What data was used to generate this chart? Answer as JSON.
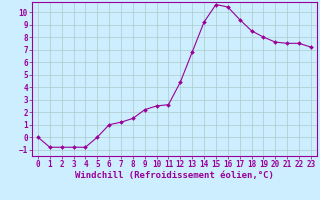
{
  "hours": [
    0,
    1,
    2,
    3,
    4,
    5,
    6,
    7,
    8,
    9,
    10,
    11,
    12,
    13,
    14,
    15,
    16,
    17,
    18,
    19,
    20,
    21,
    22,
    23
  ],
  "windchill": [
    0,
    -0.8,
    -0.8,
    -0.8,
    -0.8,
    0.0,
    1.0,
    1.2,
    1.5,
    2.2,
    2.5,
    2.6,
    4.4,
    6.8,
    9.2,
    10.6,
    10.4,
    9.4,
    8.5,
    8.0,
    7.6,
    7.5,
    7.5,
    7.2
  ],
  "line_color": "#990099",
  "marker": "D",
  "marker_size": 2.0,
  "bg_color": "#cceeff",
  "grid_color": "#aacccc",
  "xlabel": "Windchill (Refroidissement éolien,°C)",
  "ylim": [
    -1.5,
    10.8
  ],
  "xlim": [
    -0.5,
    23.5
  ],
  "yticks": [
    -1,
    0,
    1,
    2,
    3,
    4,
    5,
    6,
    7,
    8,
    9,
    10
  ],
  "xticks": [
    0,
    1,
    2,
    3,
    4,
    5,
    6,
    7,
    8,
    9,
    10,
    11,
    12,
    13,
    14,
    15,
    16,
    17,
    18,
    19,
    20,
    21,
    22,
    23
  ],
  "label_fontsize": 6.5,
  "tick_fontsize": 5.5
}
